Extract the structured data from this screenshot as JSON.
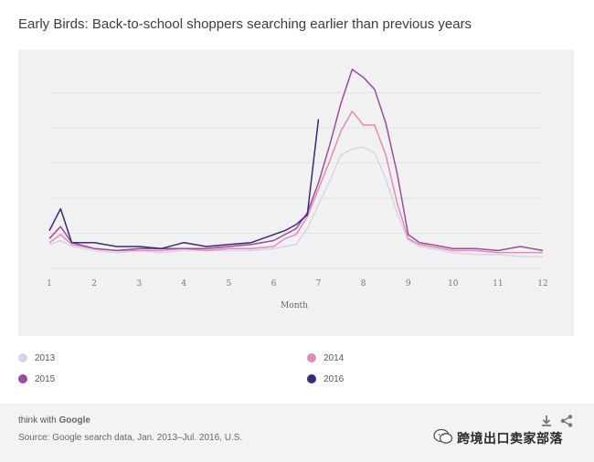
{
  "chart_data": {
    "type": "line",
    "title": "Early Birds: Back-to-school shoppers searching earlier than previous years",
    "xlabel": "Month",
    "ylabel": "",
    "xlim": [
      1,
      12
    ],
    "ylim": [
      0,
      100
    ],
    "x_ticks": [
      "1",
      "2",
      "3",
      "4",
      "5",
      "6",
      "7",
      "8",
      "9",
      "10",
      "11",
      "12"
    ],
    "grid": true,
    "legend_position": "bottom",
    "series": [
      {
        "name": "2013",
        "color": "#d9d3ea",
        "x": [
          1,
          1.25,
          1.5,
          2,
          2.5,
          3,
          3.5,
          4,
          4.5,
          5,
          5.5,
          6,
          6.25,
          6.5,
          6.75,
          7,
          7.25,
          7.5,
          7.75,
          8,
          8.25,
          8.5,
          8.75,
          9,
          9.25,
          9.5,
          10,
          10.5,
          11,
          11.5,
          12
        ],
        "values": [
          12,
          14,
          11,
          9,
          8,
          9,
          8,
          9,
          9,
          9,
          9,
          10,
          11,
          12,
          20,
          32,
          44,
          57,
          60,
          61,
          58,
          45,
          28,
          14,
          11,
          10,
          8,
          7,
          7,
          6,
          6
        ]
      },
      {
        "name": "2014",
        "color": "#e48bb6",
        "x": [
          1,
          1.25,
          1.5,
          2,
          2.5,
          3,
          3.5,
          4,
          4.5,
          5,
          5.5,
          6,
          6.25,
          6.5,
          6.75,
          7,
          7.25,
          7.5,
          7.75,
          8,
          8.25,
          8.5,
          8.75,
          9,
          9.25,
          9.5,
          10,
          10.5,
          11,
          11.5,
          12
        ],
        "values": [
          13,
          17,
          12,
          10,
          9,
          9,
          9,
          10,
          9,
          10,
          10,
          11,
          15,
          17,
          26,
          40,
          54,
          69,
          79,
          72,
          72,
          57,
          33,
          15,
          12,
          11,
          9,
          9,
          8,
          8,
          8
        ]
      },
      {
        "name": "2015",
        "color": "#9c4c9c",
        "x": [
          1,
          1.25,
          1.5,
          2,
          2.5,
          3,
          3.5,
          4,
          4.5,
          5,
          5.5,
          6,
          6.25,
          6.5,
          6.75,
          7,
          7.25,
          7.5,
          7.75,
          8,
          8.25,
          8.5,
          8.75,
          9,
          9.25,
          9.5,
          10,
          10.5,
          11,
          11.5,
          12
        ],
        "values": [
          15,
          21,
          13,
          10,
          9,
          10,
          10,
          10,
          10,
          11,
          12,
          14,
          17,
          20,
          28,
          43,
          62,
          83,
          100,
          96,
          90,
          73,
          48,
          17,
          13,
          12,
          10,
          10,
          9,
          11,
          9
        ]
      },
      {
        "name": "2016",
        "color": "#3a2a78",
        "x": [
          1,
          1.25,
          1.5,
          2,
          2.5,
          3,
          3.5,
          4,
          4.5,
          5,
          5.5,
          6,
          6.25,
          6.5,
          6.75,
          7
        ],
        "values": [
          19,
          30,
          13,
          13,
          11,
          11,
          10,
          13,
          11,
          12,
          13,
          17,
          19,
          22,
          27,
          75
        ]
      }
    ]
  },
  "legend": [
    {
      "label": "2013",
      "color": "#d9d3ea"
    },
    {
      "label": "2014",
      "color": "#e48bb6"
    },
    {
      "label": "2015",
      "color": "#9c4c9c"
    },
    {
      "label": "2016",
      "color": "#3a2a78"
    }
  ],
  "footer": {
    "brand_prefix": "think with ",
    "brand_name": "Google",
    "source": "Source: Google search data, Jan. 2013–Jul. 2016, U.S.",
    "download_icon": "download-icon",
    "share_icon": "share-icon"
  },
  "watermark": {
    "text": "跨境出口卖家部落",
    "icon": "wechat-icon"
  }
}
